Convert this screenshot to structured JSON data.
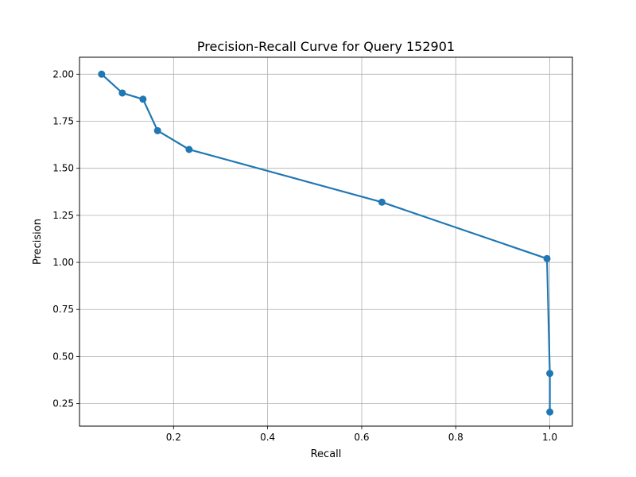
{
  "chart_data": {
    "type": "line",
    "title": "Precision-Recall Curve for Query 152901",
    "xlabel": "Recall",
    "ylabel": "Precision",
    "xlim": [
      0.0,
      1.048
    ],
    "ylim": [
      0.13,
      2.09
    ],
    "xticks": [
      0.2,
      0.4,
      0.6,
      0.8,
      1.0
    ],
    "xtick_labels": [
      "0.2",
      "0.4",
      "0.6",
      "0.8",
      "1.0"
    ],
    "yticks": [
      0.25,
      0.5,
      0.75,
      1.0,
      1.25,
      1.5,
      1.75,
      2.0
    ],
    "ytick_labels": [
      "0.25",
      "0.50",
      "0.75",
      "1.00",
      "1.25",
      "1.50",
      "1.75",
      "2.00"
    ],
    "grid": true,
    "marker": "circle",
    "color": "#1f77b4",
    "series": [
      {
        "x": [
          0.047,
          0.091,
          0.135,
          0.166,
          0.233,
          0.643,
          0.994,
          1.0,
          1.0
        ],
        "y": [
          2.0,
          1.9,
          1.867,
          1.7,
          1.6,
          1.32,
          1.02,
          0.41,
          0.205
        ]
      }
    ]
  }
}
